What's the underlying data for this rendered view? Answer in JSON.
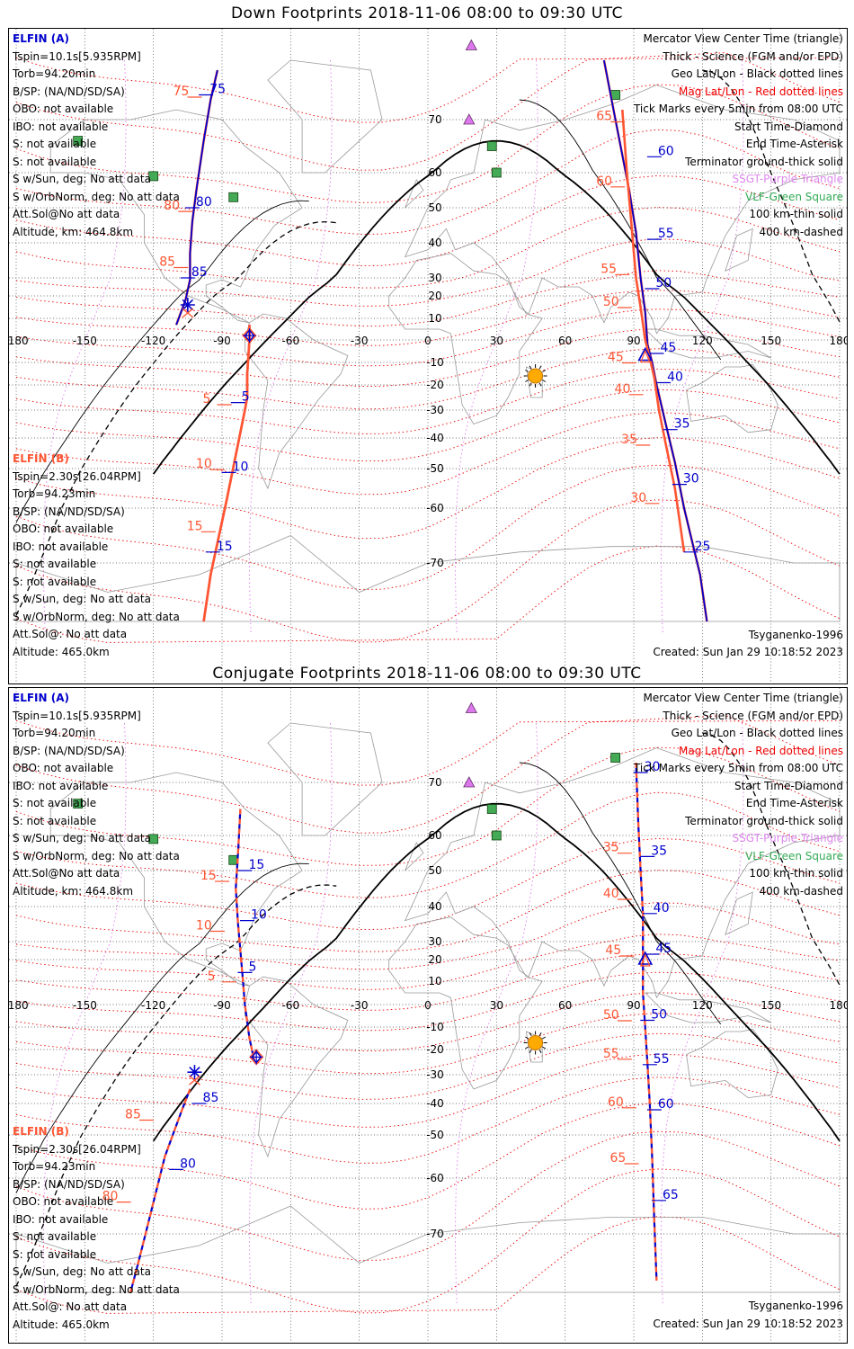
{
  "panels": [
    {
      "title": "Down Footprints 2018-11-06 08:00 to 09:30 UTC",
      "elfin_a": {
        "label": "ELFIN (A)",
        "lines": [
          "Tspin=10.1s[5.935RPM]",
          "Torb=94.20min",
          "B/SP: (NA/ND/SD/SA)",
          "OBO: not available",
          "IBO: not available",
          "S: not available",
          "S: not available",
          "S w/Sun, deg: No att data",
          "S w/OrbNorm, deg: No att data",
          "Att.Sol@No att data",
          "Altitude, km: 464.8km"
        ]
      },
      "elfin_b": {
        "label": "ELFIN (B)",
        "lines": [
          "Tspin=2.30s[26.04RPM]",
          "Torb=94.23min",
          "B/SP: (NA/ND/SD/SA)",
          "OBO: not available",
          "IBO: not available",
          "S: not available",
          "S: not available",
          "S w/Sun, deg: No att data",
          "S w/OrbNorm, deg: No att data",
          "Att.Sol@: No att data",
          "Altitude: 465.0km"
        ]
      },
      "model": "Tsyganenko-1996",
      "created": "Created: Sun Jan 29 10:18:52 2023",
      "a_labels": [
        {
          "t": "75",
          "lon": -97,
          "lat": 75
        },
        {
          "t": "80",
          "lon": -103,
          "lat": 50
        },
        {
          "t": "85",
          "lon": -105,
          "lat": 30
        },
        {
          "t": "5",
          "lon": -83,
          "lat": -27
        },
        {
          "t": "10",
          "lon": -87,
          "lat": -51
        },
        {
          "t": "15",
          "lon": -94,
          "lat": -68
        },
        {
          "t": "60",
          "lon": 99,
          "lat": 63
        },
        {
          "t": "55",
          "lon": 99,
          "lat": 41
        },
        {
          "t": "50",
          "lon": 98,
          "lat": 24
        },
        {
          "t": "45",
          "lon": 100,
          "lat": -6
        },
        {
          "t": "40",
          "lon": 103,
          "lat": -19
        },
        {
          "t": "35",
          "lon": 106,
          "lat": -37
        },
        {
          "t": "30",
          "lon": 110,
          "lat": -54
        },
        {
          "t": "25",
          "lon": 115,
          "lat": -68
        }
      ],
      "b_labels": [
        {
          "t": "75",
          "lon": -102,
          "lat": 76
        },
        {
          "t": "80",
          "lon": -106,
          "lat": 51
        },
        {
          "t": "85",
          "lon": -108,
          "lat": 35
        },
        {
          "t": "5",
          "lon": -89,
          "lat": -25
        },
        {
          "t": "10",
          "lon": -92,
          "lat": -48
        },
        {
          "t": "15",
          "lon": -96,
          "lat": -63
        },
        {
          "t": "65",
          "lon": 83,
          "lat": 71
        },
        {
          "t": "60",
          "lon": 83,
          "lat": 58
        },
        {
          "t": "55",
          "lon": 85,
          "lat": 33
        },
        {
          "t": "50",
          "lon": 86,
          "lat": 18
        },
        {
          "t": "45",
          "lon": 88,
          "lat": -7
        },
        {
          "t": "40",
          "lon": 91,
          "lat": -21
        },
        {
          "t": "35",
          "lon": 94,
          "lat": -40
        },
        {
          "t": "30",
          "lon": 98,
          "lat": -57
        }
      ],
      "tracks": {
        "a1": [
          [
            -92,
            80
          ],
          [
            -95,
            74
          ],
          [
            -98,
            66
          ],
          [
            -101,
            56
          ],
          [
            -103,
            46
          ],
          [
            -104,
            37
          ],
          [
            -104,
            29
          ],
          [
            -106,
            18
          ],
          [
            -110,
            7
          ]
        ],
        "a2": [
          [
            -78,
            7
          ],
          [
            -78,
            0
          ],
          [
            -79,
            -15
          ],
          [
            -79,
            -25
          ],
          [
            -80,
            -30
          ],
          [
            -83,
            -42
          ],
          [
            -88,
            -58
          ],
          [
            -95,
            -72
          ],
          [
            -98,
            -80
          ]
        ],
        "a3": [
          [
            77,
            82
          ],
          [
            82,
            70
          ],
          [
            88,
            55
          ],
          [
            91,
            43
          ],
          [
            93,
            30
          ],
          [
            95,
            13
          ],
          [
            96,
            -2
          ],
          [
            98,
            -10
          ],
          [
            100,
            -20
          ],
          [
            104,
            -35
          ],
          [
            108,
            -48
          ],
          [
            112,
            -60
          ],
          [
            119,
            -72
          ],
          [
            122,
            -80
          ]
        ],
        "b1": [
          [
            -78,
            7
          ],
          [
            -78,
            0
          ],
          [
            -79,
            -15
          ],
          [
            -79,
            -25
          ],
          [
            -80,
            -30
          ],
          [
            -83,
            -42
          ],
          [
            -88,
            -58
          ],
          [
            -95,
            -72
          ],
          [
            -98,
            -80
          ]
        ],
        "b2": [
          [
            85,
            72
          ],
          [
            87,
            60
          ],
          [
            89,
            45
          ],
          [
            91,
            30
          ],
          [
            93,
            15
          ],
          [
            95,
            0
          ],
          [
            97,
            -8
          ],
          [
            99,
            -17
          ],
          [
            101,
            -30
          ],
          [
            104,
            -42
          ],
          [
            108,
            -55
          ],
          [
            112,
            -68
          ]
        ]
      },
      "start": {
        "lon": -78,
        "lat": 2
      },
      "end": {
        "lon": -105,
        "lat": 16
      },
      "center": {
        "lon": 95,
        "lat": -7
      }
    },
    {
      "title": "Conjugate Footprints 2018-11-06 08:00 to 09:30 UTC",
      "elfin_a": {
        "label": "ELFIN (A)",
        "lines": [
          "Tspin=10.1s[5.935RPM]",
          "Torb=94.20min",
          "B/SP: (NA/ND/SD/SA)",
          "OBO: not available",
          "IBO: not available",
          "S: not available",
          "S: not available",
          "S w/Sun, deg: No att data",
          "S w/OrbNorm, deg: No att data",
          "Att.Sol@No att data",
          "Altitude, km: 464.8km"
        ]
      },
      "elfin_b": {
        "label": "ELFIN (B)",
        "lines": [
          "Tspin=2.30s[26.04RPM]",
          "Torb=94.23min",
          "B/SP: (NA/ND/SD/SA)",
          "OBO: not available",
          "IBO: not available",
          "S: not available",
          "S: not available",
          "S w/Sun, deg: No att data",
          "S w/OrbNorm, deg: No att data",
          "Att.Sol@: No att data",
          "Altitude: 465.0km"
        ]
      },
      "model": "Tsyganenko-1996",
      "created": "Created: Sun Jan 29 10:18:52 2023",
      "a_labels": [
        {
          "t": "15",
          "lon": -80,
          "lat": 50
        },
        {
          "t": "10",
          "lon": -79,
          "lat": 36
        },
        {
          "t": "5",
          "lon": -80,
          "lat": 14
        },
        {
          "t": "85",
          "lon": -100,
          "lat": -40
        },
        {
          "t": "80",
          "lon": -110,
          "lat": -58
        },
        {
          "t": "30",
          "lon": 93,
          "lat": 72
        },
        {
          "t": "35",
          "lon": 96,
          "lat": 54
        },
        {
          "t": "40",
          "lon": 97,
          "lat": 38
        },
        {
          "t": "45",
          "lon": 98,
          "lat": 23
        },
        {
          "t": "50",
          "lon": 96,
          "lat": -7
        },
        {
          "t": "55",
          "lon": 97,
          "lat": -26
        },
        {
          "t": "60",
          "lon": 99,
          "lat": -42
        },
        {
          "t": "65",
          "lon": 101,
          "lat": -64
        }
      ],
      "b_labels": [
        {
          "t": "15",
          "lon": -90,
          "lat": 49
        },
        {
          "t": "10",
          "lon": -92,
          "lat": 35
        },
        {
          "t": "5",
          "lon": -87,
          "lat": 13
        },
        {
          "t": "85",
          "lon": -123,
          "lat": -43
        },
        {
          "t": "80",
          "lon": -133,
          "lat": -63
        },
        {
          "t": "35",
          "lon": 86,
          "lat": 57
        },
        {
          "t": "40",
          "lon": 86,
          "lat": 44
        },
        {
          "t": "45",
          "lon": 87,
          "lat": 26
        },
        {
          "t": "50",
          "lon": 86,
          "lat": -4
        },
        {
          "t": "55",
          "lon": 86,
          "lat": -21
        },
        {
          "t": "60",
          "lon": 88,
          "lat": -39
        },
        {
          "t": "65",
          "lon": 89,
          "lat": -55
        }
      ],
      "tracks": {
        "a1": [
          [
            -82,
            65
          ],
          [
            -83,
            55
          ],
          [
            -84,
            45
          ],
          [
            -83,
            35
          ],
          [
            -82,
            25
          ],
          [
            -81,
            12
          ],
          [
            -80,
            0
          ],
          [
            -78,
            -15
          ],
          [
            -76,
            -24
          ]
        ],
        "a2": [
          [
            -104,
            -35
          ],
          [
            -108,
            -43
          ],
          [
            -115,
            -55
          ],
          [
            -121,
            -66
          ],
          [
            -126,
            -74
          ],
          [
            -130,
            -80
          ]
        ],
        "a3": [
          [
            91,
            74
          ],
          [
            92,
            62
          ],
          [
            93,
            50
          ],
          [
            94,
            38
          ],
          [
            94,
            25
          ],
          [
            94,
            18
          ],
          [
            94,
            5
          ],
          [
            95,
            -10
          ],
          [
            96,
            -26
          ],
          [
            97,
            -40
          ],
          [
            98,
            -55
          ],
          [
            99,
            -68
          ],
          [
            100,
            -78
          ]
        ],
        "b1": [
          [
            -82,
            65
          ],
          [
            -83,
            55
          ],
          [
            -84,
            45
          ],
          [
            -83,
            35
          ],
          [
            -82,
            25
          ],
          [
            -81,
            12
          ],
          [
            -80,
            0
          ],
          [
            -78,
            -15
          ],
          [
            -76,
            -24
          ]
        ],
        "b2": [
          [
            -104,
            -35
          ],
          [
            -108,
            -43
          ],
          [
            -115,
            -55
          ],
          [
            -121,
            -66
          ],
          [
            -126,
            -74
          ],
          [
            -130,
            -80
          ]
        ],
        "b3": [
          [
            91,
            74
          ],
          [
            92,
            62
          ],
          [
            93,
            50
          ],
          [
            94,
            38
          ],
          [
            94,
            25
          ],
          [
            94,
            18
          ],
          [
            94,
            5
          ],
          [
            95,
            -10
          ],
          [
            96,
            -26
          ],
          [
            97,
            -40
          ],
          [
            98,
            -55
          ],
          [
            99,
            -68
          ],
          [
            100,
            -78
          ]
        ]
      },
      "start": {
        "lon": -75,
        "lat": -23
      },
      "end": {
        "lon": -102,
        "lat": -29
      },
      "center": {
        "lon": 95,
        "lat": 20
      }
    }
  ],
  "legend": {
    "center": "Mercator View Center Time (triangle)",
    "thick": "Thick - Science (FGM and/or EPD)",
    "geo": "Geo Lat/Lon - Black dotted lines",
    "mag": "Mag Lat/Lon - Red dotted lines",
    "ticks": "Tick Marks every 5min from 08:00 UTC",
    "start": "Start Time-Diamond",
    "end": "End Time-Asterisk",
    "terminator": "Terminator ground-thick solid",
    "sgt": "SSGT-Purple Triangle",
    "vlf": "VLF-Green Square",
    "km100": "100 km-thin solid",
    "km400": "400 km-dashed"
  },
  "lon_ticks": [
    "-180",
    "-150",
    "-120",
    "-90",
    "-60",
    "-30",
    "0",
    "30",
    "60",
    "90",
    "120",
    "150",
    "180"
  ],
  "lat_ticks": [
    "70",
    "60",
    "50",
    "40",
    "30",
    "20",
    "10",
    "-10",
    "-20",
    "-30",
    "-40",
    "-50",
    "-60",
    "-70"
  ],
  "colors": {
    "elfin_a": "#0000cc",
    "elfin_b": "#ff5533",
    "mag_grid": "#ee0000",
    "terminator": "#000000",
    "vlf": "#44aa55",
    "sgt": "#dd77ee",
    "sun": "#ffaa00"
  }
}
